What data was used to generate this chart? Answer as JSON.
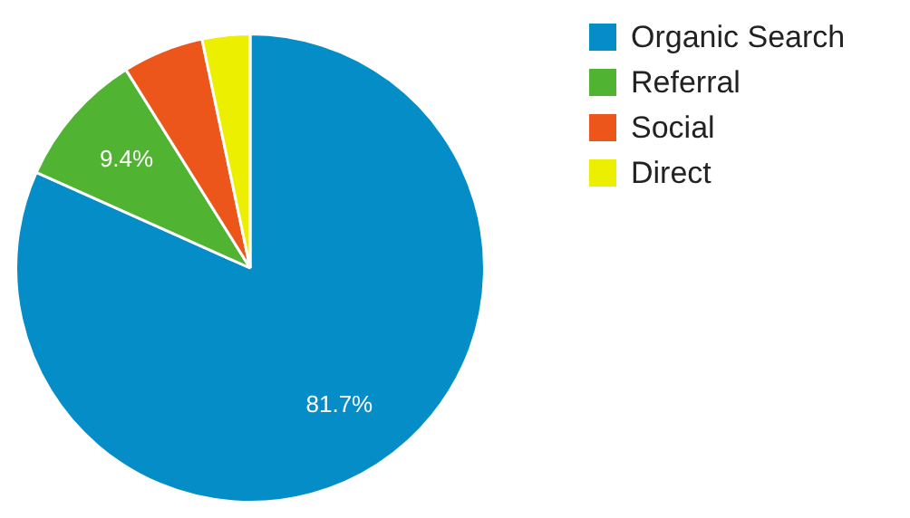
{
  "chart_data": {
    "type": "pie",
    "categories": [
      "Organic Search",
      "Referral",
      "Social",
      "Direct"
    ],
    "values": [
      81.7,
      9.4,
      5.6,
      3.3
    ],
    "colors": [
      "#058dc7",
      "#50b432",
      "#ed561b",
      "#edef00"
    ],
    "value_labels": [
      "81.7%",
      "9.4%",
      null,
      null
    ],
    "legend": "top right"
  }
}
